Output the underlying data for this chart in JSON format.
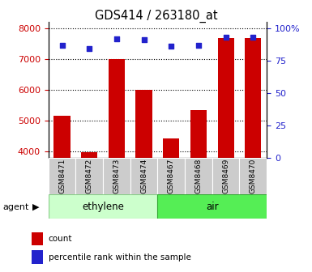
{
  "title": "GDS414 / 263180_at",
  "categories": [
    "GSM8471",
    "GSM8472",
    "GSM8473",
    "GSM8474",
    "GSM8467",
    "GSM8468",
    "GSM8469",
    "GSM8470"
  ],
  "counts": [
    5170,
    3985,
    7000,
    6000,
    4430,
    5330,
    7660,
    7660
  ],
  "percentile_ranks": [
    87,
    84,
    92,
    91,
    86,
    87,
    93,
    93
  ],
  "bar_color": "#cc0000",
  "dot_color": "#2222cc",
  "ylim_left": [
    3800,
    8200
  ],
  "ylim_right": [
    0,
    105
  ],
  "yticks_left": [
    4000,
    5000,
    6000,
    7000,
    8000
  ],
  "yticks_right": [
    0,
    25,
    50,
    75,
    100
  ],
  "group1_label": "ethylene",
  "group2_label": "air",
  "group1_color": "#ccffcc",
  "group2_color": "#55ee55",
  "agent_label": "agent",
  "legend_count": "count",
  "legend_percentile": "percentile rank within the sample",
  "background_color": "#ffffff",
  "grid_color": "#000000",
  "tick_label_color_left": "#cc0000",
  "tick_label_color_right": "#2222cc",
  "bar_bottom": 3800,
  "figsize": [
    3.85,
    3.36
  ],
  "dpi": 100
}
